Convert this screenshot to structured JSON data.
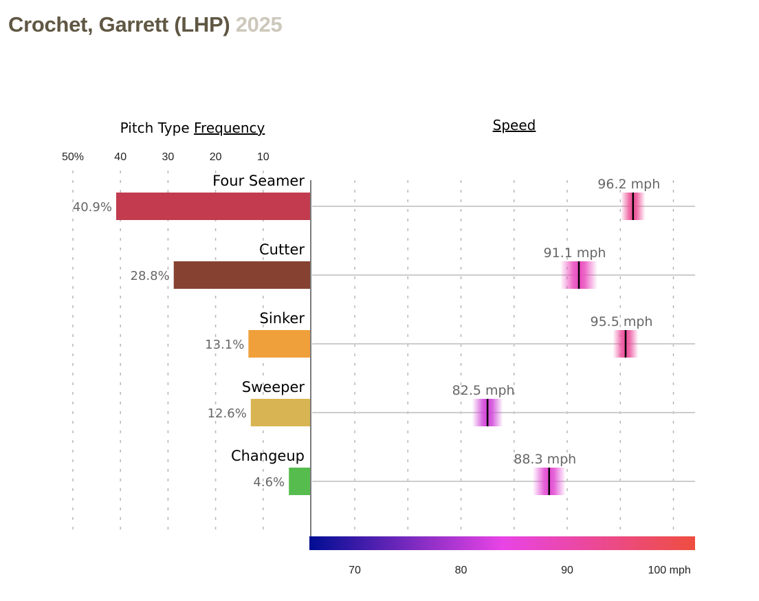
{
  "header": {
    "player": "Crochet, Garrett (LHP)",
    "season": "2025"
  },
  "chart_data": {
    "type": "bar",
    "title": "Crochet, Garrett (LHP) 2025",
    "frequency_panel": {
      "title_prefix": "Pitch Type ",
      "title_link": "Frequency",
      "xlim": [
        50,
        0
      ],
      "ticks": [
        50,
        40,
        30,
        20,
        10
      ],
      "tick_labels": [
        "50%",
        "40",
        "30",
        "20",
        "10"
      ],
      "grid": "dashed-vertical"
    },
    "speed_panel": {
      "title": "Speed",
      "xlim": [
        65.8,
        103
      ],
      "grid_ticks": [
        70,
        75,
        80,
        85,
        90,
        95,
        100
      ],
      "tick_labels_values": [
        70,
        80,
        90,
        100
      ],
      "tick_labels": [
        "70",
        "80",
        "90",
        "100 mph"
      ],
      "colorscale": {
        "range": [
          66,
          102
        ],
        "stops": [
          "#000d93",
          "#e844e6",
          "#ee4e3f"
        ]
      }
    },
    "categories": [
      "Four Seamer",
      "Cutter",
      "Sinker",
      "Sweeper",
      "Changeup"
    ],
    "series": [
      {
        "name": "Frequency (%)",
        "values": [
          40.9,
          28.8,
          13.1,
          12.6,
          4.6
        ],
        "labels": [
          "40.9%",
          "28.8%",
          "13.1%",
          "12.6%",
          "4.6%"
        ],
        "colors": [
          "#c23b4f",
          "#874131",
          "#f0a03a",
          "#d8b552",
          "#57bc4e"
        ]
      },
      {
        "name": "Average Speed (mph)",
        "values": [
          96.2,
          91.1,
          95.5,
          82.5,
          88.3
        ],
        "labels": [
          "96.2 mph",
          "91.1 mph",
          "95.5 mph",
          "82.5 mph",
          "88.3 mph"
        ],
        "spread_mph": [
          2.3,
          3.5,
          2.4,
          2.9,
          3.1
        ],
        "colors": [
          "#ec4f95",
          "#e94bbd",
          "#ec4e9b",
          "#d045d8",
          "#e149d2"
        ]
      }
    ]
  }
}
